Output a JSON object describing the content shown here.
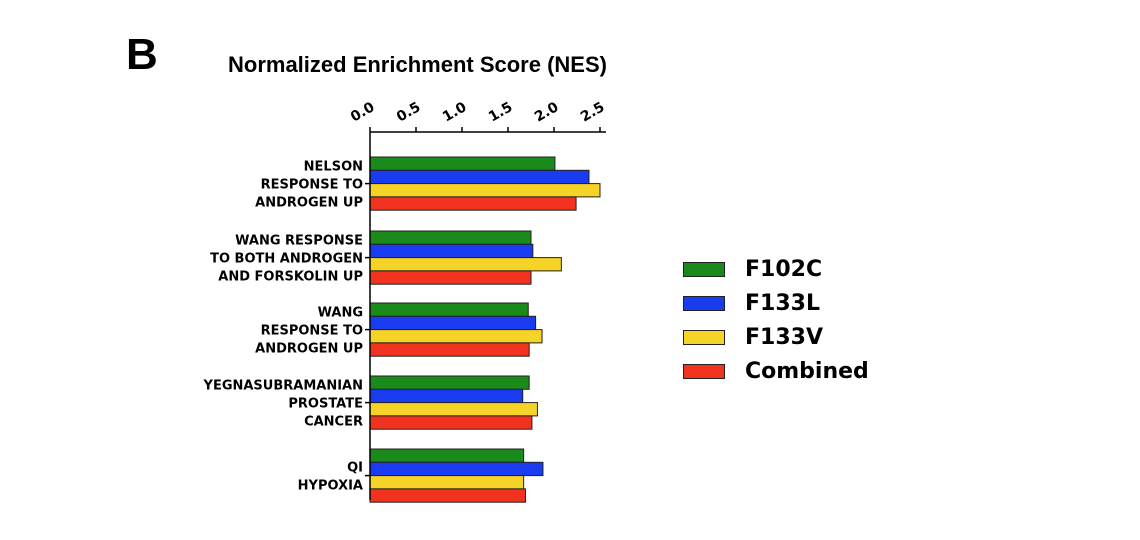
{
  "panel_label": "B",
  "colors": {
    "F102C": "#1a8a1a",
    "F133L": "#1a3cf0",
    "F133V": "#f5d327",
    "Combined": "#f0321e"
  },
  "chart_data": {
    "type": "bar",
    "orientation": "horizontal",
    "title": "Normalized Enrichment Score (NES)",
    "xlabel": "",
    "ylabel": "",
    "xlim": [
      0.0,
      2.5
    ],
    "x_ticks": [
      "0.0",
      "0.5",
      "1.0",
      "1.5",
      "2.0",
      "2.5"
    ],
    "x_axis_position": "top",
    "legend_position": "right",
    "categories": [
      [
        "NELSON",
        "RESPONSE TO",
        "ANDROGEN UP"
      ],
      [
        "WANG RESPONSE",
        "TO BOTH ANDROGEN",
        "AND FORSKOLIN UP"
      ],
      [
        "WANG",
        "RESPONSE TO",
        "ANDROGEN UP"
      ],
      [
        "YEGNASUBRAMANIAN",
        "PROSTATE",
        "CANCER"
      ],
      [
        "QI",
        "HYPOXIA"
      ]
    ],
    "series": [
      {
        "name": "F102C",
        "values": [
          2.01,
          1.75,
          1.72,
          1.73,
          1.67
        ]
      },
      {
        "name": "F133L",
        "values": [
          2.38,
          1.77,
          1.8,
          1.66,
          1.88
        ]
      },
      {
        "name": "F133V",
        "values": [
          2.5,
          2.08,
          1.87,
          1.82,
          1.67
        ]
      },
      {
        "name": "Combined",
        "values": [
          2.24,
          1.75,
          1.73,
          1.76,
          1.69
        ]
      }
    ]
  }
}
